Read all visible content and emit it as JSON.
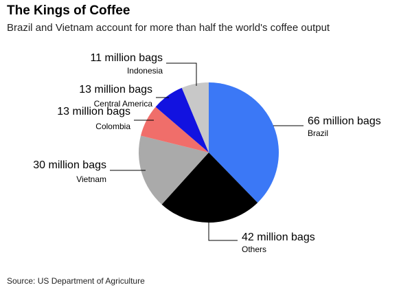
{
  "chart_data": {
    "type": "pie",
    "title": "The Kings of Coffee",
    "subtitle": "Brazil and Vietnam account for more than half the world's coffee output",
    "categories": [
      "Brazil",
      "Others",
      "Vietnam",
      "Colombia",
      "Central America",
      "Indonesia"
    ],
    "values": [
      66,
      42,
      30,
      13,
      13,
      11
    ],
    "value_labels": [
      "66 million bags",
      "42 million bags",
      "30 million bags",
      "13 million bags",
      "13 million bags",
      "11 million bags"
    ],
    "colors": [
      "#3b78f6",
      "#000000",
      "#aaaaaa",
      "#f06e6a",
      "#1212e0",
      "#c8c8c8"
    ],
    "source": "Source: US Department of Agriculture"
  }
}
